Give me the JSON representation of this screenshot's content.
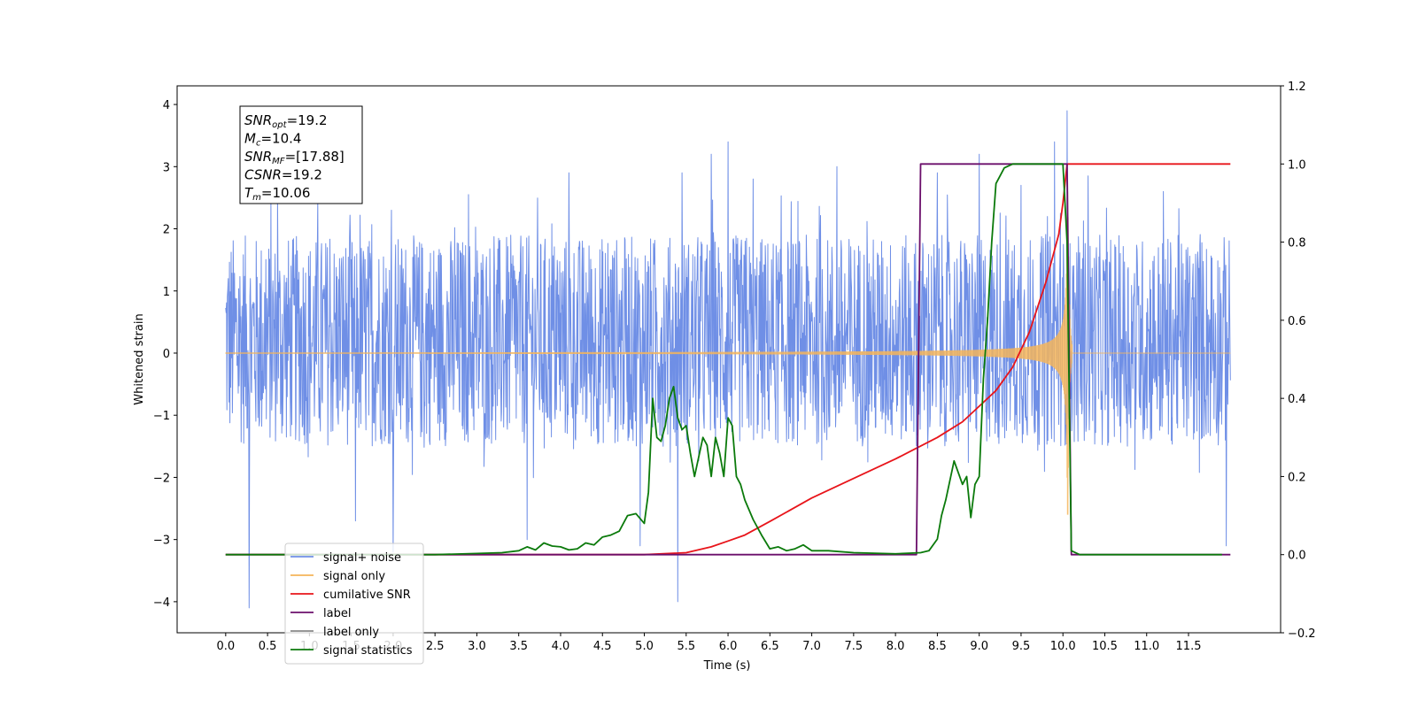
{
  "chart_data": {
    "type": "line",
    "title": "",
    "xlabel": "Time (s)",
    "ylabel": "Whitened strain",
    "ylabel_right": "",
    "xlim": [
      -0.58,
      12.6
    ],
    "ylim": [
      -4.5,
      4.3
    ],
    "ylim_right": [
      -0.2,
      1.2
    ],
    "x_ticks": [
      0.0,
      0.5,
      1.0,
      1.5,
      2.0,
      2.5,
      3.0,
      3.5,
      4.0,
      4.5,
      5.0,
      5.5,
      6.0,
      6.5,
      7.0,
      7.5,
      8.0,
      8.5,
      9.0,
      9.5,
      10.0,
      10.5,
      11.0,
      11.5
    ],
    "x_tick_labels": [
      "0.0",
      "0.5",
      "1.0",
      "1.5",
      "2.0",
      "2.5",
      "3.0",
      "3.5",
      "4.0",
      "4.5",
      "5.0",
      "5.5",
      "6.0",
      "6.5",
      "7.0",
      "7.5",
      "8.0",
      "8.5",
      "9.0",
      "9.5",
      "10.0",
      "10.5",
      "11.0",
      "11.5"
    ],
    "y_ticks": [
      -4,
      -3,
      -2,
      -1,
      0,
      1,
      2,
      3,
      4
    ],
    "y_tick_labels": [
      "−4",
      "−3",
      "−2",
      "−1",
      "0",
      "1",
      "2",
      "3",
      "4"
    ],
    "y_ticks_right": [
      -0.2,
      0.0,
      0.2,
      0.4,
      0.6,
      0.8,
      1.0,
      1.2
    ],
    "y_tick_labels_right": [
      "−0.2",
      "0.0",
      "0.2",
      "0.4",
      "0.6",
      "0.8",
      "1.0",
      "1.2"
    ],
    "grid": false,
    "legend_position": "lower-left",
    "info_box": {
      "lines": [
        {
          "sym": "SNR",
          "sub": "opt",
          "val": "=19.2"
        },
        {
          "sym": "M",
          "sub": "c",
          "val": "=10.4"
        },
        {
          "sym": "SNR",
          "sub": "MF",
          "val": "=[17.88]"
        },
        {
          "sym": "CSNR",
          "sub": "",
          "val": "=19.2"
        },
        {
          "sym": "T",
          "sub": "m",
          "val": "=10.06"
        }
      ]
    },
    "series": [
      {
        "name": "signal+ noise",
        "axis": "left",
        "color": "#6f8fe6",
        "kind": "noise",
        "x_range": [
          0.0,
          12.0
        ],
        "band": [
          -1.5,
          1.9
        ],
        "spikes": [
          {
            "x": 0.28,
            "y": -4.1
          },
          {
            "x": 0.62,
            "y": 2.5
          },
          {
            "x": 1.1,
            "y": 2.45
          },
          {
            "x": 1.55,
            "y": -2.7
          },
          {
            "x": 1.98,
            "y": 2.3
          },
          {
            "x": 2.0,
            "y": -3.2
          },
          {
            "x": 2.9,
            "y": 2.55
          },
          {
            "x": 3.6,
            "y": -3.0
          },
          {
            "x": 4.1,
            "y": 2.9
          },
          {
            "x": 4.95,
            "y": -3.1
          },
          {
            "x": 5.4,
            "y": -4.0
          },
          {
            "x": 5.45,
            "y": 2.9
          },
          {
            "x": 5.8,
            "y": 3.2
          },
          {
            "x": 6.0,
            "y": 3.4
          },
          {
            "x": 6.3,
            "y": 2.8
          },
          {
            "x": 7.3,
            "y": 3.0
          },
          {
            "x": 8.5,
            "y": 2.9
          },
          {
            "x": 9.0,
            "y": 3.2
          },
          {
            "x": 9.5,
            "y": 2.7
          },
          {
            "x": 9.9,
            "y": 3.4
          },
          {
            "x": 10.05,
            "y": 3.9
          },
          {
            "x": 10.3,
            "y": 2.85
          },
          {
            "x": 11.2,
            "y": 2.6
          },
          {
            "x": 11.95,
            "y": -3.1
          }
        ]
      },
      {
        "name": "signal only",
        "axis": "left",
        "color": "#f5b55a",
        "kind": "chirp",
        "x_range": [
          0.0,
          12.0
        ],
        "merger_time": 10.06,
        "peak_amplitude": 2.6
      },
      {
        "name": "cumilative SNR",
        "axis": "right",
        "color": "#e8141a",
        "x": [
          0.0,
          5.0,
          5.5,
          5.8,
          6.0,
          6.2,
          6.5,
          7.0,
          7.5,
          8.0,
          8.5,
          8.8,
          9.0,
          9.2,
          9.4,
          9.6,
          9.8,
          9.95,
          10.0,
          10.05,
          10.5,
          11.0,
          11.5,
          12.0
        ],
        "y": [
          0.0,
          0.0,
          0.005,
          0.02,
          0.035,
          0.05,
          0.085,
          0.145,
          0.195,
          0.245,
          0.3,
          0.34,
          0.38,
          0.42,
          0.48,
          0.57,
          0.7,
          0.82,
          0.9,
          1.0,
          1.0,
          1.0,
          1.0,
          1.0
        ]
      },
      {
        "name": "label",
        "axis": "right",
        "color": "#6b0f6b",
        "x": [
          0.0,
          8.25,
          8.3,
          10.0,
          10.05,
          10.1,
          12.0
        ],
        "y": [
          0.0,
          0.0,
          1.0,
          1.0,
          1.0,
          0.0,
          0.0
        ]
      },
      {
        "name": "label only",
        "axis": "right",
        "color": "#888888",
        "x": [],
        "y": []
      },
      {
        "name": "signal statistics",
        "axis": "right",
        "color": "#0b7a0b",
        "x": [
          0.0,
          2.5,
          3.0,
          3.3,
          3.5,
          3.6,
          3.7,
          3.8,
          3.9,
          4.0,
          4.1,
          4.2,
          4.3,
          4.4,
          4.5,
          4.6,
          4.7,
          4.8,
          4.9,
          5.0,
          5.05,
          5.1,
          5.15,
          5.2,
          5.25,
          5.3,
          5.35,
          5.4,
          5.45,
          5.5,
          5.55,
          5.6,
          5.7,
          5.75,
          5.8,
          5.85,
          5.9,
          5.95,
          6.0,
          6.05,
          6.1,
          6.15,
          6.2,
          6.3,
          6.4,
          6.5,
          6.6,
          6.7,
          6.8,
          6.9,
          7.0,
          7.2,
          7.5,
          8.0,
          8.3,
          8.4,
          8.5,
          8.55,
          8.6,
          8.7,
          8.8,
          8.85,
          8.9,
          8.95,
          9.0,
          9.05,
          9.1,
          9.15,
          9.2,
          9.3,
          9.4,
          9.5,
          9.7,
          9.9,
          10.0,
          10.05,
          10.1,
          10.2,
          11.0,
          11.9
        ],
        "y": [
          0.0,
          0.0,
          0.003,
          0.005,
          0.01,
          0.02,
          0.012,
          0.03,
          0.022,
          0.02,
          0.012,
          0.015,
          0.03,
          0.025,
          0.045,
          0.05,
          0.06,
          0.1,
          0.105,
          0.08,
          0.16,
          0.4,
          0.3,
          0.29,
          0.33,
          0.4,
          0.43,
          0.35,
          0.32,
          0.33,
          0.26,
          0.2,
          0.3,
          0.28,
          0.2,
          0.3,
          0.26,
          0.2,
          0.35,
          0.33,
          0.2,
          0.18,
          0.14,
          0.09,
          0.05,
          0.015,
          0.02,
          0.01,
          0.015,
          0.025,
          0.01,
          0.01,
          0.005,
          0.002,
          0.005,
          0.01,
          0.04,
          0.1,
          0.14,
          0.24,
          0.18,
          0.2,
          0.095,
          0.18,
          0.2,
          0.45,
          0.6,
          0.8,
          0.95,
          0.99,
          1.0,
          1.0,
          1.0,
          1.0,
          1.0,
          0.8,
          0.01,
          0.0,
          0.0,
          0.0
        ]
      }
    ]
  }
}
